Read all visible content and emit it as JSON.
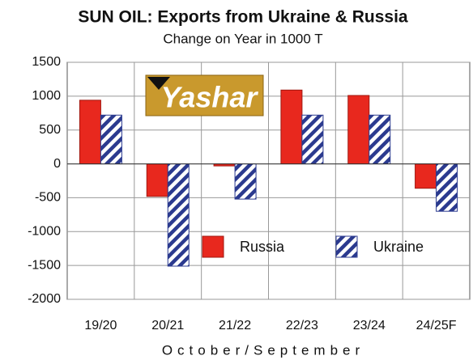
{
  "chart_data": {
    "type": "bar",
    "title": "SUN OIL: Exports from Ukraine & Russia",
    "subtitle": "Change on Year in 1000 T",
    "x_label": "October/September",
    "watermark": "Yashar",
    "categories": [
      "19/20",
      "20/21",
      "21/22",
      "22/23",
      "23/24",
      "24/25F"
    ],
    "series": [
      {
        "name": "Russia",
        "color": "#e8281e",
        "values": [
          940,
          -480,
          -30,
          1090,
          1010,
          -360
        ]
      },
      {
        "name": "Ukraine",
        "color": "#2b3a8f",
        "hatch": true,
        "values": [
          720,
          -1510,
          -520,
          720,
          720,
          -700
        ]
      }
    ],
    "ylim": [
      -2000,
      1500
    ],
    "yticks": [
      -2000,
      -1500,
      -1000,
      -500,
      0,
      500,
      1000,
      1500
    ],
    "grid": true,
    "legend": "lower center"
  }
}
